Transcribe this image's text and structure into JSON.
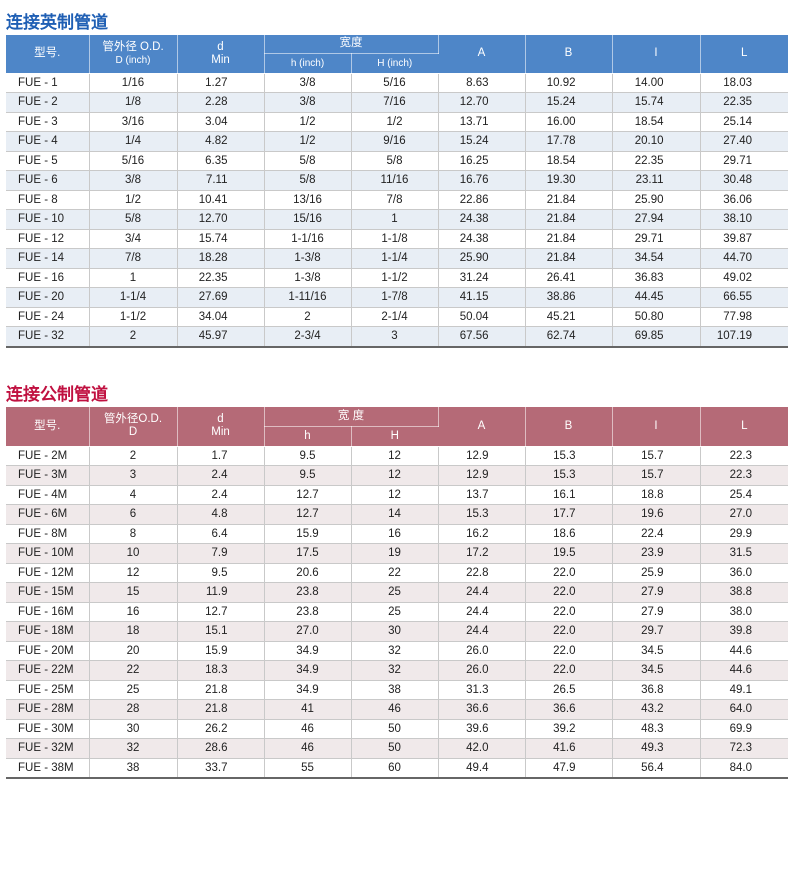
{
  "imperial": {
    "title": "连接英制管道",
    "headers": {
      "model": "型号.",
      "od_cn": "管外径 O.D.",
      "od_unit": "D (inch)",
      "d": "d",
      "d_sub": "Min",
      "width": "宽度",
      "h": "h (inch)",
      "H": "H (inch)",
      "A": "A",
      "B": "B",
      "I": "I",
      "L": "L"
    },
    "rows": [
      [
        "FUE  -  1",
        "1/16",
        "1.27",
        "3/8",
        "5/16",
        "8.63",
        "10.92",
        "14.00",
        "18.03"
      ],
      [
        "FUE  -  2",
        "1/8",
        "2.28",
        "3/8",
        "7/16",
        "12.70",
        "15.24",
        "15.74",
        "22.35"
      ],
      [
        "FUE  -  3",
        "3/16",
        "3.04",
        "1/2",
        "1/2",
        "13.71",
        "16.00",
        "18.54",
        "25.14"
      ],
      [
        "FUE  -  4",
        "1/4",
        "4.82",
        "1/2",
        "9/16",
        "15.24",
        "17.78",
        "20.10",
        "27.40"
      ],
      [
        "FUE  -  5",
        "5/16",
        "6.35",
        "5/8",
        "5/8",
        "16.25",
        "18.54",
        "22.35",
        "29.71"
      ],
      [
        "FUE  -  6",
        "3/8",
        "7.11",
        "5/8",
        "11/16",
        "16.76",
        "19.30",
        "23.11",
        "30.48"
      ],
      [
        "FUE  -  8",
        "1/2",
        "10.41",
        "13/16",
        "7/8",
        "22.86",
        "21.84",
        "25.90",
        "36.06"
      ],
      [
        "FUE  - 10",
        "5/8",
        "12.70",
        "15/16",
        "1",
        "24.38",
        "21.84",
        "27.94",
        "38.10"
      ],
      [
        "FUE  - 12",
        "3/4",
        "15.74",
        "1-1/16",
        "1-1/8",
        "24.38",
        "21.84",
        "29.71",
        "39.87"
      ],
      [
        "FUE  - 14",
        "7/8",
        "18.28",
        "1-3/8",
        "1-1/4",
        "25.90",
        "21.84",
        "34.54",
        "44.70"
      ],
      [
        "FUE  - 16",
        "1",
        "22.35",
        "1-3/8",
        "1-1/2",
        "31.24",
        "26.41",
        "36.83",
        "49.02"
      ],
      [
        "FUE  - 20",
        "1-1/4",
        "27.69",
        "1-11/16",
        "1-7/8",
        "41.15",
        "38.86",
        "44.45",
        "66.55"
      ],
      [
        "FUE  - 24",
        "1-1/2",
        "34.04",
        "2",
        "2-1/4",
        "50.04",
        "45.21",
        "50.80",
        "77.98"
      ],
      [
        "FUE  - 32",
        "2",
        "45.97",
        "2-3/4",
        "3",
        "67.56",
        "62.74",
        "69.85",
        "107.19"
      ]
    ]
  },
  "metric": {
    "title": "连接公制管道",
    "headers": {
      "model": "型号.",
      "od_cn": "管外径O.D.",
      "od_unit": "D",
      "d": "d",
      "d_sub": "Min",
      "width": "宽 度",
      "h": "h",
      "H": "H",
      "A": "A",
      "B": "B",
      "I": "I",
      "L": "L"
    },
    "rows": [
      [
        "FUE  -  2M",
        "2",
        "1.7",
        "9.5",
        "12",
        "12.9",
        "15.3",
        "15.7",
        "22.3"
      ],
      [
        "FUE  -  3M",
        "3",
        "2.4",
        "9.5",
        "12",
        "12.9",
        "15.3",
        "15.7",
        "22.3"
      ],
      [
        "FUE  -  4M",
        "4",
        "2.4",
        "12.7",
        "12",
        "13.7",
        "16.1",
        "18.8",
        "25.4"
      ],
      [
        "FUE  -  6M",
        "6",
        "4.8",
        "12.7",
        "14",
        "15.3",
        "17.7",
        "19.6",
        "27.0"
      ],
      [
        "FUE  -  8M",
        "8",
        "6.4",
        "15.9",
        "16",
        "16.2",
        "18.6",
        "22.4",
        "29.9"
      ],
      [
        "FUE  - 10M",
        "10",
        "7.9",
        "17.5",
        "19",
        "17.2",
        "19.5",
        "23.9",
        "31.5"
      ],
      [
        "FUE - 12M",
        "12",
        "9.5",
        "20.6",
        "22",
        "22.8",
        "22.0",
        "25.9",
        "36.0"
      ],
      [
        "FUE  - 15M",
        "15",
        "11.9",
        "23.8",
        "25",
        "24.4",
        "22.0",
        "27.9",
        "38.8"
      ],
      [
        "FUE  - 16M",
        "16",
        "12.7",
        "23.8",
        "25",
        "24.4",
        "22.0",
        "27.9",
        "38.0"
      ],
      [
        "FUE  - 18M",
        "18",
        "15.1",
        "27.0",
        "30",
        "24.4",
        "22.0",
        "29.7",
        "39.8"
      ],
      [
        "FUE  - 20M",
        "20",
        "15.9",
        "34.9",
        "32",
        "26.0",
        "22.0",
        "34.5",
        "44.6"
      ],
      [
        "FUE  - 22M",
        "22",
        "18.3",
        "34.9",
        "32",
        "26.0",
        "22.0",
        "34.5",
        "44.6"
      ],
      [
        "FUE  - 25M",
        "25",
        "21.8",
        "34.9",
        "38",
        "31.3",
        "26.5",
        "36.8",
        "49.1"
      ],
      [
        "FUE  - 28M",
        "28",
        "21.8",
        "41",
        "46",
        "36.6",
        "36.6",
        "43.2",
        "64.0"
      ],
      [
        "FUE  - 30M",
        "30",
        "26.2",
        "46",
        "50",
        "39.6",
        "39.2",
        "48.3",
        "69.9"
      ],
      [
        "FUE  - 32M",
        "32",
        "28.6",
        "46",
        "50",
        "42.0",
        "41.6",
        "49.3",
        "72.3"
      ],
      [
        "FUE  - 38M",
        "38",
        "33.7",
        "55",
        "60",
        "49.4",
        "47.9",
        "56.4",
        "84.0"
      ]
    ]
  }
}
